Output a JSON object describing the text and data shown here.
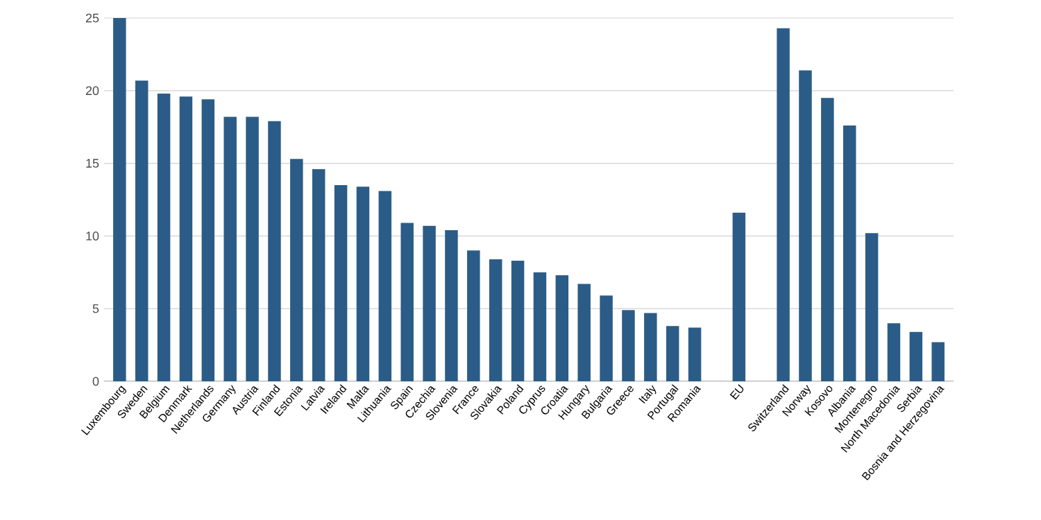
{
  "chart_data": {
    "type": "bar",
    "categories": [
      "Luxembourg",
      "Sweden",
      "Belgium",
      "Denmark",
      "Netherlands",
      "Germany",
      "Austria",
      "Finland",
      "Estonia",
      "Latvia",
      "Ireland",
      "Malta",
      "Lithuania",
      "Spain",
      "Czechia",
      "Slovenia",
      "France",
      "Slovakia",
      "Poland",
      "Cyprus",
      "Croatia",
      "Hungary",
      "Bulgaria",
      "Greece",
      "Italy",
      "Portugal",
      "Romania",
      null,
      "EU",
      null,
      "Switzerland",
      "Norway",
      "Kosovo",
      "Albania",
      "Montenegro",
      "North Macedonia",
      "Serbia",
      "Bosnia and Herzegovina"
    ],
    "values": [
      25.0,
      20.7,
      19.8,
      19.6,
      19.4,
      18.2,
      18.2,
      17.9,
      15.3,
      14.6,
      13.5,
      13.4,
      13.1,
      10.9,
      10.7,
      10.4,
      9.0,
      8.4,
      8.3,
      7.5,
      7.3,
      6.7,
      5.9,
      4.9,
      4.7,
      3.8,
      3.7,
      null,
      11.6,
      null,
      24.3,
      21.4,
      19.5,
      17.6,
      10.2,
      4.0,
      3.4,
      2.7
    ],
    "color": "#2b5c87",
    "ylim": [
      0,
      25
    ],
    "yticks": [
      0,
      5,
      10,
      15,
      20,
      25
    ],
    "grid": "y"
  }
}
